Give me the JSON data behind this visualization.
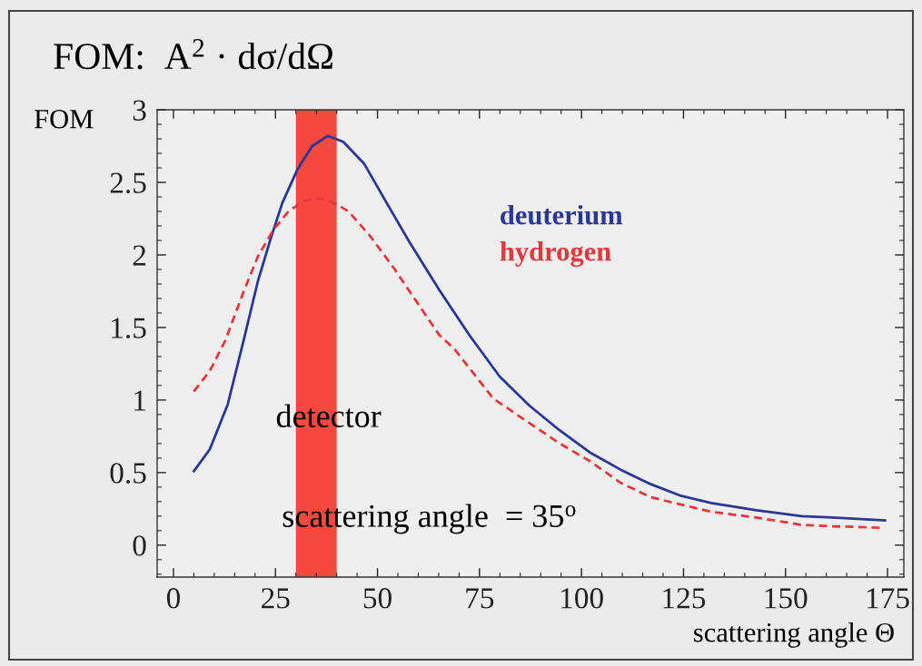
{
  "chart_data": {
    "type": "line",
    "title": "FOM:  A$^{2}$ · dσ/dΩ",
    "ylabel": "FOM",
    "xlabel": "scattering angle Θ",
    "xlim": [
      -4,
      179
    ],
    "xticks": [
      0,
      25,
      50,
      75,
      100,
      125,
      150,
      175
    ],
    "ylim": [
      -0.22,
      3
    ],
    "yticks": [
      0,
      0.5,
      1,
      1.5,
      2,
      2.5,
      3
    ],
    "series": [
      {
        "name": "deuterium",
        "color": "#2a3794",
        "line_style": "solid",
        "x": [
          5,
          8.9,
          13.3,
          17.1,
          20.7,
          23.8,
          26.7,
          30.4,
          34,
          37.8,
          41.6,
          46.7,
          51.8,
          57.8,
          65.1,
          72.7,
          80,
          87.3,
          94.7,
          102,
          109.6,
          117,
          124.4,
          131.8,
          142.9,
          154,
          161.6,
          174.4
        ],
        "values": [
          0.51,
          0.66,
          0.97,
          1.4,
          1.82,
          2.11,
          2.36,
          2.59,
          2.75,
          2.82,
          2.78,
          2.63,
          2.38,
          2.09,
          1.76,
          1.44,
          1.16,
          0.96,
          0.79,
          0.64,
          0.52,
          0.42,
          0.34,
          0.29,
          0.24,
          0.2,
          0.19,
          0.17
        ]
      },
      {
        "name": "hydrogen",
        "color": "#e8363c",
        "line_style": "dashed",
        "x": [
          5,
          8.9,
          12.7,
          17.1,
          20.7,
          24.4,
          28.2,
          31.8,
          35.6,
          39.3,
          42.9,
          48.2,
          54,
          60,
          65.1,
          68.9,
          78.4,
          87.3,
          94.7,
          102,
          109.6,
          117,
          124.4,
          131.8,
          142.9,
          154,
          161.6,
          173.8
        ],
        "values": [
          1.06,
          1.2,
          1.41,
          1.74,
          1.99,
          2.17,
          2.3,
          2.37,
          2.39,
          2.36,
          2.3,
          2.13,
          1.91,
          1.66,
          1.45,
          1.35,
          1.01,
          0.84,
          0.7,
          0.58,
          0.43,
          0.33,
          0.28,
          0.23,
          0.19,
          0.14,
          0.13,
          0.12
        ]
      }
    ],
    "bands": [
      {
        "axis": "x",
        "from": 30,
        "to": 40,
        "label": "detector",
        "color": "#f5483f"
      }
    ],
    "annotations": [
      "scattering angle  = 35$^{o}$"
    ],
    "legend": "top"
  }
}
